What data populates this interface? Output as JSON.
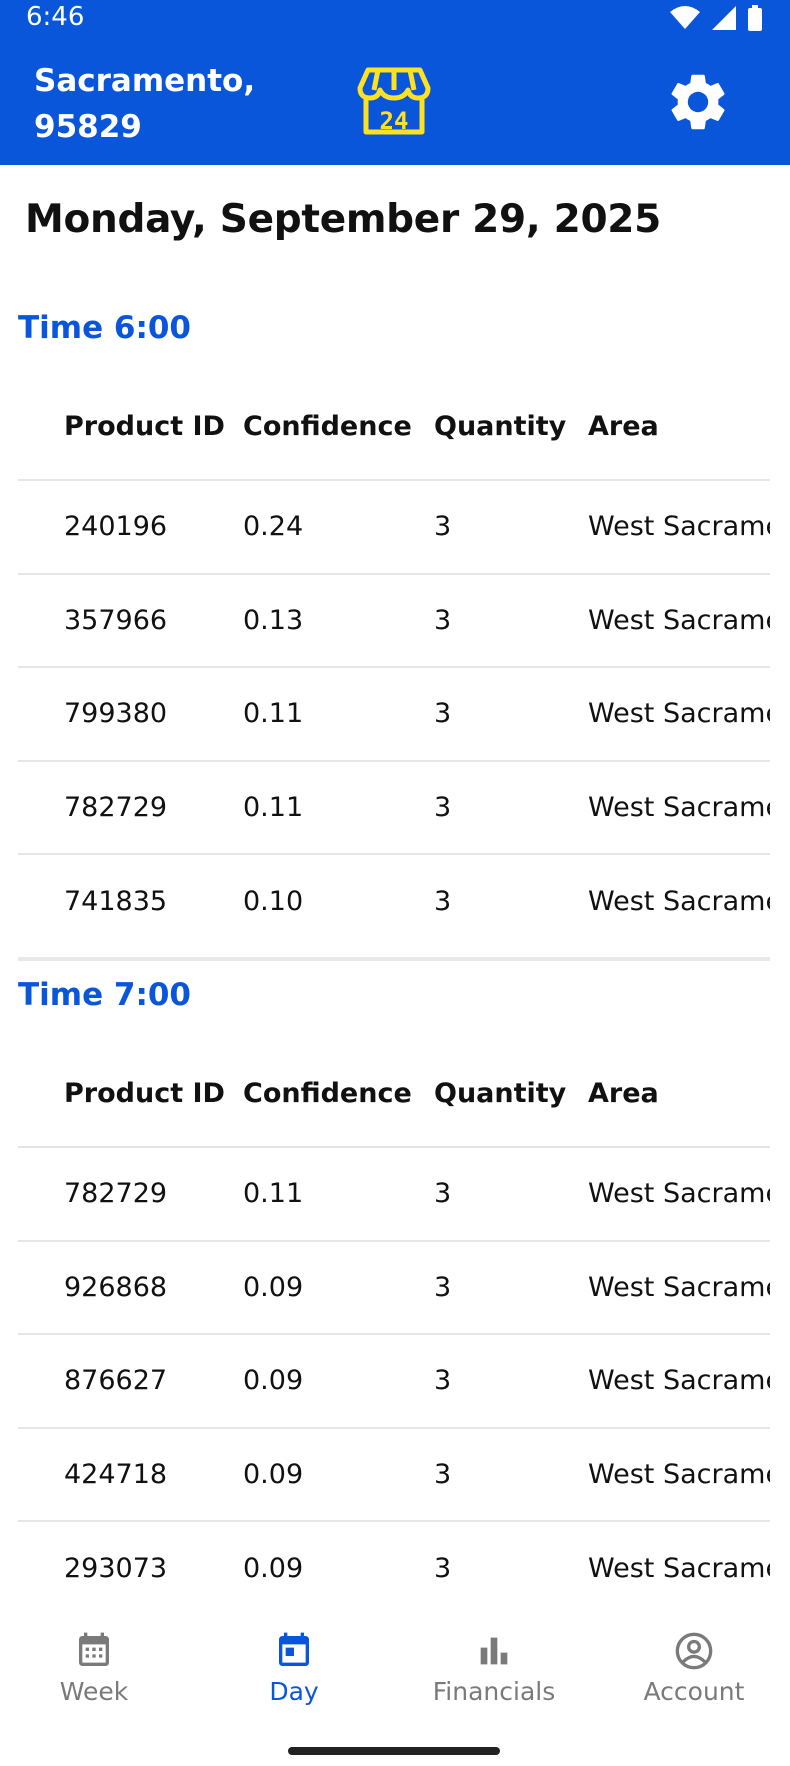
{
  "status_bar": {
    "time": "6:46"
  },
  "header": {
    "location": "Sacramento, 95829",
    "store_badge": "24"
  },
  "page": {
    "date_title": "Monday, September 29, 2025"
  },
  "columns": [
    "Product ID",
    "Confidence",
    "Quantity",
    "Area"
  ],
  "sections": [
    {
      "title": "Time 6:00",
      "rows": [
        [
          "240196",
          "0.24",
          "3",
          "West Sacrame"
        ],
        [
          "357966",
          "0.13",
          "3",
          "West Sacrame"
        ],
        [
          "799380",
          "0.11",
          "3",
          "West Sacrame"
        ],
        [
          "782729",
          "0.11",
          "3",
          "West Sacrame"
        ],
        [
          "741835",
          "0.10",
          "3",
          "West Sacrame"
        ]
      ]
    },
    {
      "title": "Time 7:00",
      "rows": [
        [
          "782729",
          "0.11",
          "3",
          "West Sacrame"
        ],
        [
          "926868",
          "0.09",
          "3",
          "West Sacrame"
        ],
        [
          "876627",
          "0.09",
          "3",
          "West Sacrame"
        ],
        [
          "424718",
          "0.09",
          "3",
          "West Sacrame"
        ],
        [
          "293073",
          "0.09",
          "3",
          "West Sacrame"
        ]
      ]
    }
  ],
  "bottom_nav": [
    {
      "label": "Week",
      "icon": "calendar-grid-icon",
      "active": false
    },
    {
      "label": "Day",
      "icon": "calendar-day-icon",
      "active": true
    },
    {
      "label": "Financials",
      "icon": "bar-chart-icon",
      "active": false
    },
    {
      "label": "Account",
      "icon": "account-circle-icon",
      "active": false
    }
  ],
  "colors": {
    "primary": "#0A56DB",
    "store_icon": "#FFE21F",
    "inactive": "#7A7A7A"
  }
}
